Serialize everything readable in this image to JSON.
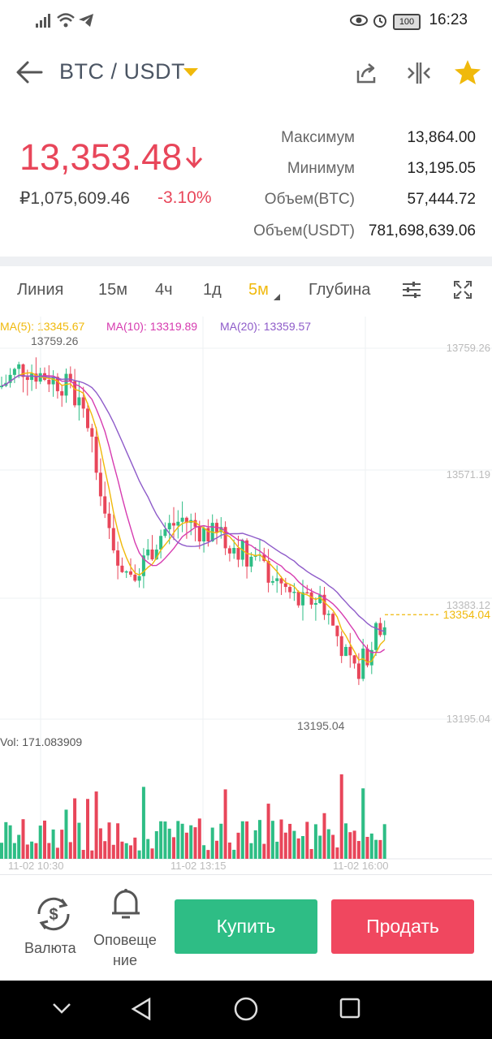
{
  "status_bar": {
    "time": "16:23",
    "battery": "100",
    "icons": [
      "signal-icon",
      "wifi-icon",
      "telegram-icon",
      "eye-icon",
      "alarm-icon",
      "battery-icon"
    ]
  },
  "header": {
    "pair": "BTC / USDT",
    "icons": [
      "back-arrow-icon",
      "share-icon",
      "compare-icon",
      "star-icon"
    ]
  },
  "price": {
    "last": "13,353.48",
    "fiat": "₽1,075,609.46",
    "change": "-3.10%",
    "trend_color": "#e8465a"
  },
  "stats": [
    {
      "label": "Максимум",
      "value": "13,864.00"
    },
    {
      "label": "Минимум",
      "value": "13,195.05"
    },
    {
      "label": "Объем(BTC)",
      "value": "57,444.72"
    },
    {
      "label": "Объем(USDT)",
      "value": "781,698,639.06"
    }
  ],
  "tabs": [
    {
      "label": "Линия",
      "active": false
    },
    {
      "label": "15м",
      "active": false
    },
    {
      "label": "4ч",
      "active": false
    },
    {
      "label": "1д",
      "active": false
    },
    {
      "label": "5м",
      "active": true
    },
    {
      "label": "Глубина",
      "active": false
    }
  ],
  "chart_data": {
    "type": "candlestick",
    "indicators": [
      {
        "name": "MA(5)",
        "value": "13345.67",
        "color": "#f0b90b"
      },
      {
        "name": "MA(10)",
        "value": "13319.89",
        "color": "#d63bb0"
      },
      {
        "name": "MA(20)",
        "value": "13359.57",
        "color": "#8e5bc9"
      }
    ],
    "y_ticks": [
      "13759.26",
      "13571.19",
      "13383.12",
      "13195.04"
    ],
    "y_range": [
      13195.04,
      13759.26
    ],
    "current_price_label": "13354.04",
    "high_marker": "13759.26",
    "low_marker": "13195.04",
    "x_labels": [
      "11-02 10:30",
      "11-02 13:15",
      "11-02 16:00"
    ],
    "volume_label": "Vol: 171.083909",
    "up_color": "#2ebd85",
    "down_color": "#e8465a"
  },
  "bottom": {
    "currency_label": "Валюта",
    "alert_line1": "Оповеще",
    "alert_line2": "ние",
    "buy_label": "Купить",
    "sell_label": "Продать"
  }
}
